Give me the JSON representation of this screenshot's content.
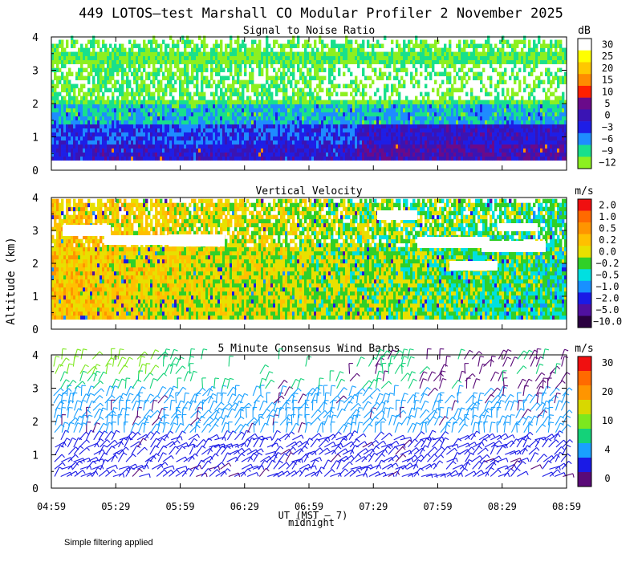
{
  "title": "449 LOTOS–test Marshall CO Modular Profiler  2 November 2025",
  "ylabel": "Altitude (km)",
  "xlabel": "UT  (MST – 7)",
  "midnight_label": "midnight",
  "footnote": "Simple filtering applied",
  "colors": {
    "barb_levels": [
      "#5a0a78",
      "#1a1ae6",
      "#19a0ff",
      "#14d279",
      "#7ce81e",
      "#d8d800",
      "#ff9500",
      "#f01010"
    ]
  },
  "chart_data": [
    {
      "type": "heatmap",
      "title": "Signal to Noise Ratio",
      "unit": "dB",
      "ylim": [
        0,
        4
      ],
      "y_ticks": [
        "0",
        "1",
        "2",
        "3",
        "4"
      ],
      "x_ticks": [
        "04:59",
        "05:29",
        "05:59",
        "06:29",
        "06:59",
        "07:29",
        "07:59",
        "08:29",
        "08:59"
      ],
      "colorbar": {
        "labels": [
          "30",
          "25",
          "20",
          "15",
          "10",
          "5",
          "0",
          "−3",
          "−6",
          "−9",
          "−12"
        ],
        "colors": [
          "#ffffff",
          "#ffff00",
          "#ffc800",
          "#ff8c00",
          "#ff2000",
          "#6a0a8a",
          "#3a14b4",
          "#1e1ee6",
          "#1e8cff",
          "#18e08c",
          "#8cf020"
        ]
      }
    },
    {
      "type": "heatmap",
      "title": "Vertical Velocity",
      "unit": "m/s",
      "ylim": [
        0,
        4
      ],
      "y_ticks": [
        "0",
        "1",
        "2",
        "3",
        "4"
      ],
      "x_ticks": [
        "04:59",
        "05:29",
        "05:59",
        "06:29",
        "06:59",
        "07:29",
        "07:59",
        "08:29",
        "08:59"
      ],
      "colorbar": {
        "labels": [
          "2.0",
          "1.0",
          "0.5",
          "0.2",
          "0.0",
          "−0.2",
          "−0.5",
          "−1.0",
          "−2.0",
          "−5.0",
          "−10.0"
        ],
        "colors": [
          "#f01010",
          "#ff6a00",
          "#ff9500",
          "#ffc000",
          "#e8e000",
          "#30d028",
          "#00e0e0",
          "#1890ff",
          "#1a1ae6",
          "#5010a0",
          "#2a0040"
        ]
      }
    },
    {
      "type": "scatter",
      "title": "5 Minute Consensus Wind Barbs",
      "unit": "m/s",
      "ylim": [
        0,
        4
      ],
      "y_ticks": [
        "0",
        "1",
        "2",
        "3",
        "4"
      ],
      "x_ticks": [
        "04:59",
        "05:29",
        "05:59",
        "06:29",
        "06:59",
        "07:29",
        "07:59",
        "08:29",
        "08:59"
      ],
      "colorbar": {
        "labels": [
          "30",
          "20",
          "10",
          "4",
          "0"
        ],
        "colors": [
          "#f01010",
          "#ff6a00",
          "#ff9500",
          "#d8d800",
          "#7ce81e",
          "#14d279",
          "#19a0ff",
          "#1a1ae6",
          "#5a0a78"
        ]
      }
    }
  ]
}
